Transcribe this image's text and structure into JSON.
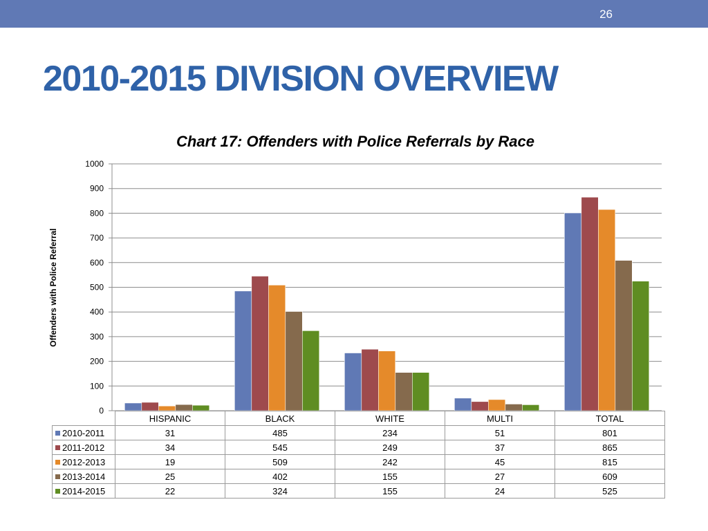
{
  "header": {
    "page_number": "26"
  },
  "slide": {
    "title": "2010-2015 DIVISION OVERVIEW"
  },
  "chart_data": {
    "type": "bar",
    "title": "Chart 17: Offenders with Police Referrals by Race",
    "xlabel": "",
    "ylabel": "Offenders with Police Referral",
    "ylim": [
      0,
      1000
    ],
    "yticks": [
      0,
      100,
      200,
      300,
      400,
      500,
      600,
      700,
      800,
      900,
      1000
    ],
    "grid": true,
    "legend": "data-table",
    "categories": [
      "HISPANIC",
      "BLACK",
      "WHITE",
      "MULTI",
      "TOTAL"
    ],
    "series": [
      {
        "name": "2010-2011",
        "color": "#6079b5",
        "values": [
          31,
          485,
          234,
          51,
          801
        ]
      },
      {
        "name": "2011-2012",
        "color": "#9e4a4d",
        "values": [
          34,
          545,
          249,
          37,
          865
        ]
      },
      {
        "name": "2012-2013",
        "color": "#e58a2a",
        "values": [
          19,
          509,
          242,
          45,
          815
        ]
      },
      {
        "name": "2013-2014",
        "color": "#856a4d",
        "values": [
          25,
          402,
          155,
          27,
          609
        ]
      },
      {
        "name": "2014-2015",
        "color": "#5f8d22",
        "values": [
          22,
          324,
          155,
          24,
          525
        ]
      }
    ]
  }
}
